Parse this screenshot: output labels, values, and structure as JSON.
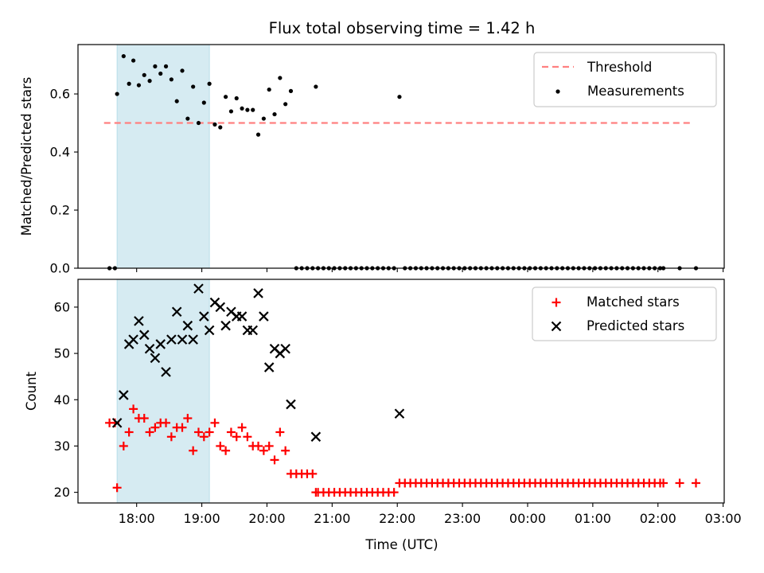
{
  "figure": {
    "title": "Flux total observing time = 1.42 h"
  },
  "chart_data": [
    {
      "type": "scatter",
      "panel": "top",
      "title": "Flux total observing time = 1.42 h",
      "xlabel": "",
      "ylabel": "Matched/Predicted stars",
      "x_unit": "time (UTC)",
      "xlim": [
        "17:06",
        "03:01"
      ],
      "ylim": [
        0,
        0.77
      ],
      "yticks": [
        "0.0",
        "0.2",
        "0.4",
        "0.6"
      ],
      "ytick_values": [
        0,
        0.2,
        0.4,
        0.6
      ],
      "grid": false,
      "legend_position": "upper right",
      "shaded_region": {
        "start": "17:42",
        "end": "19:07",
        "color": "#add8e6"
      },
      "series": [
        {
          "name": "Threshold",
          "kind": "line",
          "style": "dashed",
          "color": "#ff8080",
          "x": [
            "17:30",
            "02:30"
          ],
          "y": [
            0.5,
            0.5
          ]
        },
        {
          "name": "Measurements",
          "kind": "scatter",
          "marker": "dot",
          "color": "#000000",
          "points": [
            [
              "17:35",
              0.0
            ],
            [
              "17:40",
              0.0
            ],
            [
              "17:42",
              0.6
            ],
            [
              "17:48",
              0.73
            ],
            [
              "17:53",
              0.635
            ],
            [
              "17:57",
              0.715
            ],
            [
              "18:02",
              0.63
            ],
            [
              "18:07",
              0.665
            ],
            [
              "18:12",
              0.645
            ],
            [
              "18:17",
              0.695
            ],
            [
              "18:22",
              0.67
            ],
            [
              "18:27",
              0.695
            ],
            [
              "18:32",
              0.65
            ],
            [
              "18:37",
              0.575
            ],
            [
              "18:42",
              0.68
            ],
            [
              "18:47",
              0.515
            ],
            [
              "18:52",
              0.625
            ],
            [
              "18:57",
              0.5
            ],
            [
              "19:02",
              0.57
            ],
            [
              "19:07",
              0.635
            ],
            [
              "19:12",
              0.495
            ],
            [
              "19:17",
              0.485
            ],
            [
              "19:22",
              0.59
            ],
            [
              "19:27",
              0.54
            ],
            [
              "19:32",
              0.585
            ],
            [
              "19:37",
              0.55
            ],
            [
              "19:42",
              0.545
            ],
            [
              "19:47",
              0.545
            ],
            [
              "19:52",
              0.46
            ],
            [
              "19:57",
              0.515
            ],
            [
              "20:02",
              0.615
            ],
            [
              "20:07",
              0.53
            ],
            [
              "20:12",
              0.655
            ],
            [
              "20:17",
              0.565
            ],
            [
              "20:22",
              0.61
            ],
            [
              "20:27",
              0.0
            ],
            [
              "20:32",
              0.0
            ],
            [
              "20:37",
              0.0
            ],
            [
              "20:42",
              0.0
            ],
            [
              "20:45",
              0.625
            ],
            [
              "20:47",
              0.0
            ],
            [
              "20:52",
              0.0
            ],
            [
              "20:57",
              0.0
            ],
            [
              "21:02",
              0.0
            ],
            [
              "21:07",
              0.0
            ],
            [
              "21:12",
              0.0
            ],
            [
              "21:17",
              0.0
            ],
            [
              "21:22",
              0.0
            ],
            [
              "21:27",
              0.0
            ],
            [
              "21:32",
              0.0
            ],
            [
              "21:37",
              0.0
            ],
            [
              "21:42",
              0.0
            ],
            [
              "21:47",
              0.0
            ],
            [
              "21:52",
              0.0
            ],
            [
              "21:57",
              0.0
            ],
            [
              "22:02",
              0.59
            ],
            [
              "22:07",
              0.0
            ],
            [
              "22:12",
              0.0
            ],
            [
              "22:17",
              0.0
            ],
            [
              "22:22",
              0.0
            ],
            [
              "22:27",
              0.0
            ],
            [
              "22:32",
              0.0
            ],
            [
              "22:37",
              0.0
            ],
            [
              "22:42",
              0.0
            ],
            [
              "22:47",
              0.0
            ],
            [
              "22:52",
              0.0
            ],
            [
              "22:57",
              0.0
            ],
            [
              "23:02",
              0.0
            ],
            [
              "23:07",
              0.0
            ],
            [
              "23:12",
              0.0
            ],
            [
              "23:17",
              0.0
            ],
            [
              "23:22",
              0.0
            ],
            [
              "23:27",
              0.0
            ],
            [
              "23:32",
              0.0
            ],
            [
              "23:37",
              0.0
            ],
            [
              "23:42",
              0.0
            ],
            [
              "23:47",
              0.0
            ],
            [
              "23:52",
              0.0
            ],
            [
              "23:57",
              0.0
            ],
            [
              "00:02",
              0.0
            ],
            [
              "00:07",
              0.0
            ],
            [
              "00:12",
              0.0
            ],
            [
              "00:17",
              0.0
            ],
            [
              "00:22",
              0.0
            ],
            [
              "00:27",
              0.0
            ],
            [
              "00:32",
              0.0
            ],
            [
              "00:37",
              0.0
            ],
            [
              "00:42",
              0.0
            ],
            [
              "00:47",
              0.0
            ],
            [
              "00:52",
              0.0
            ],
            [
              "00:57",
              0.0
            ],
            [
              "01:02",
              0.0
            ],
            [
              "01:07",
              0.0
            ],
            [
              "01:12",
              0.0
            ],
            [
              "01:17",
              0.0
            ],
            [
              "01:22",
              0.0
            ],
            [
              "01:27",
              0.0
            ],
            [
              "01:32",
              0.0
            ],
            [
              "01:37",
              0.0
            ],
            [
              "01:42",
              0.0
            ],
            [
              "01:47",
              0.0
            ],
            [
              "01:52",
              0.0
            ],
            [
              "01:57",
              0.0
            ],
            [
              "02:02",
              0.0
            ],
            [
              "02:05",
              0.0
            ],
            [
              "02:20",
              0.0
            ],
            [
              "02:35",
              0.0
            ]
          ]
        }
      ]
    },
    {
      "type": "scatter",
      "panel": "bottom",
      "title": "",
      "xlabel": "Time (UTC)",
      "ylabel": "Count",
      "x_unit": "time (UTC)",
      "xlim": [
        "17:06",
        "03:01"
      ],
      "ylim": [
        17.7,
        66
      ],
      "xticks": [
        "18:00",
        "19:00",
        "20:00",
        "21:00",
        "22:00",
        "23:00",
        "00:00",
        "01:00",
        "02:00",
        "03:00"
      ],
      "yticks": [
        "20",
        "30",
        "40",
        "50",
        "60"
      ],
      "ytick_values": [
        20,
        30,
        40,
        50,
        60
      ],
      "grid": false,
      "legend_position": "upper right",
      "shaded_region": {
        "start": "17:42",
        "end": "19:07",
        "color": "#add8e6"
      },
      "series": [
        {
          "name": "Matched stars",
          "kind": "scatter",
          "marker": "plus",
          "color": "#ff0000",
          "points": [
            [
              "17:35",
              35
            ],
            [
              "17:40",
              35
            ],
            [
              "17:42",
              21
            ],
            [
              "17:48",
              30
            ],
            [
              "17:53",
              33
            ],
            [
              "17:57",
              38
            ],
            [
              "18:02",
              36
            ],
            [
              "18:07",
              36
            ],
            [
              "18:12",
              33
            ],
            [
              "18:17",
              34
            ],
            [
              "18:22",
              35
            ],
            [
              "18:27",
              35
            ],
            [
              "18:32",
              32
            ],
            [
              "18:37",
              34
            ],
            [
              "18:42",
              34
            ],
            [
              "18:47",
              36
            ],
            [
              "18:52",
              29
            ],
            [
              "18:57",
              33
            ],
            [
              "19:02",
              32
            ],
            [
              "19:07",
              33
            ],
            [
              "19:12",
              35
            ],
            [
              "19:17",
              30
            ],
            [
              "19:22",
              29
            ],
            [
              "19:27",
              33
            ],
            [
              "19:32",
              32
            ],
            [
              "19:37",
              34
            ],
            [
              "19:42",
              32
            ],
            [
              "19:47",
              30
            ],
            [
              "19:52",
              30
            ],
            [
              "19:57",
              29
            ],
            [
              "20:02",
              30
            ],
            [
              "20:07",
              27
            ],
            [
              "20:12",
              33
            ],
            [
              "20:17",
              29
            ],
            [
              "20:22",
              24
            ],
            [
              "20:27",
              24
            ],
            [
              "20:32",
              24
            ],
            [
              "20:37",
              24
            ],
            [
              "20:42",
              24
            ],
            [
              "20:45",
              20
            ],
            [
              "20:47",
              20
            ],
            [
              "20:52",
              20
            ],
            [
              "20:57",
              20
            ],
            [
              "21:02",
              20
            ],
            [
              "21:07",
              20
            ],
            [
              "21:12",
              20
            ],
            [
              "21:17",
              20
            ],
            [
              "21:22",
              20
            ],
            [
              "21:27",
              20
            ],
            [
              "21:32",
              20
            ],
            [
              "21:37",
              20
            ],
            [
              "21:42",
              20
            ],
            [
              "21:47",
              20
            ],
            [
              "21:52",
              20
            ],
            [
              "21:57",
              20
            ],
            [
              "22:02",
              22
            ],
            [
              "22:07",
              22
            ],
            [
              "22:12",
              22
            ],
            [
              "22:17",
              22
            ],
            [
              "22:22",
              22
            ],
            [
              "22:27",
              22
            ],
            [
              "22:32",
              22
            ],
            [
              "22:37",
              22
            ],
            [
              "22:42",
              22
            ],
            [
              "22:47",
              22
            ],
            [
              "22:52",
              22
            ],
            [
              "22:57",
              22
            ],
            [
              "23:02",
              22
            ],
            [
              "23:07",
              22
            ],
            [
              "23:12",
              22
            ],
            [
              "23:17",
              22
            ],
            [
              "23:22",
              22
            ],
            [
              "23:27",
              22
            ],
            [
              "23:32",
              22
            ],
            [
              "23:37",
              22
            ],
            [
              "23:42",
              22
            ],
            [
              "23:47",
              22
            ],
            [
              "23:52",
              22
            ],
            [
              "23:57",
              22
            ],
            [
              "00:02",
              22
            ],
            [
              "00:07",
              22
            ],
            [
              "00:12",
              22
            ],
            [
              "00:17",
              22
            ],
            [
              "00:22",
              22
            ],
            [
              "00:27",
              22
            ],
            [
              "00:32",
              22
            ],
            [
              "00:37",
              22
            ],
            [
              "00:42",
              22
            ],
            [
              "00:47",
              22
            ],
            [
              "00:52",
              22
            ],
            [
              "00:57",
              22
            ],
            [
              "01:02",
              22
            ],
            [
              "01:07",
              22
            ],
            [
              "01:12",
              22
            ],
            [
              "01:17",
              22
            ],
            [
              "01:22",
              22
            ],
            [
              "01:27",
              22
            ],
            [
              "01:32",
              22
            ],
            [
              "01:37",
              22
            ],
            [
              "01:42",
              22
            ],
            [
              "01:47",
              22
            ],
            [
              "01:52",
              22
            ],
            [
              "01:57",
              22
            ],
            [
              "02:02",
              22
            ],
            [
              "02:05",
              22
            ],
            [
              "02:20",
              22
            ],
            [
              "02:35",
              22
            ]
          ]
        },
        {
          "name": "Predicted stars",
          "kind": "scatter",
          "marker": "x",
          "color": "#000000",
          "points": [
            [
              "17:42",
              35
            ],
            [
              "17:48",
              41
            ],
            [
              "17:53",
              52
            ],
            [
              "17:57",
              53
            ],
            [
              "18:02",
              57
            ],
            [
              "18:07",
              54
            ],
            [
              "18:12",
              51
            ],
            [
              "18:17",
              49
            ],
            [
              "18:22",
              52
            ],
            [
              "18:27",
              46
            ],
            [
              "18:32",
              53
            ],
            [
              "18:37",
              59
            ],
            [
              "18:42",
              53
            ],
            [
              "18:47",
              56
            ],
            [
              "18:52",
              53
            ],
            [
              "18:57",
              64
            ],
            [
              "19:02",
              58
            ],
            [
              "19:07",
              55
            ],
            [
              "19:12",
              61
            ],
            [
              "19:17",
              60
            ],
            [
              "19:22",
              56
            ],
            [
              "19:27",
              59
            ],
            [
              "19:32",
              58
            ],
            [
              "19:37",
              58
            ],
            [
              "19:42",
              55
            ],
            [
              "19:47",
              55
            ],
            [
              "19:52",
              63
            ],
            [
              "19:57",
              58
            ],
            [
              "20:02",
              47
            ],
            [
              "20:07",
              51
            ],
            [
              "20:12",
              50
            ],
            [
              "20:17",
              51
            ],
            [
              "20:22",
              39
            ],
            [
              "20:45",
              32
            ],
            [
              "22:02",
              37
            ]
          ]
        }
      ]
    }
  ]
}
